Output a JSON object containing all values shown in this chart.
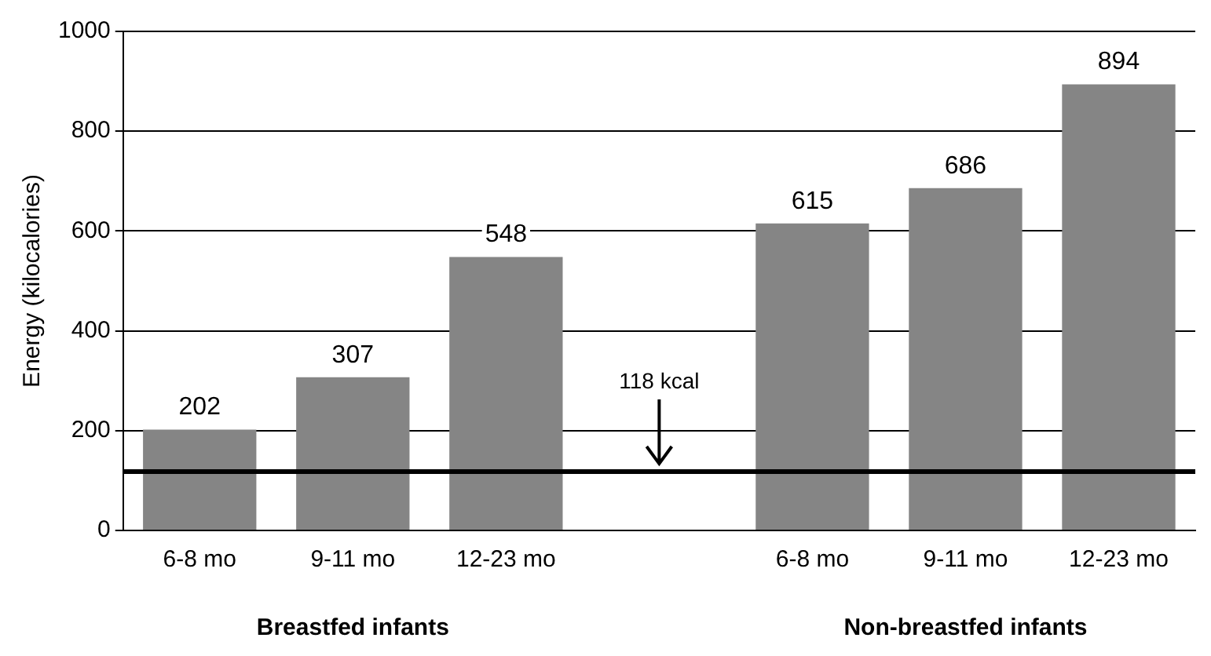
{
  "chart_data": {
    "type": "bar",
    "ylabel": "Energy (kilocalories)",
    "categories": [
      "6-8 mo",
      "9-11 mo",
      "12-23 mo",
      null,
      "6-8 mo",
      "9-11 mo",
      "12-23 mo"
    ],
    "values": [
      202,
      307,
      548,
      null,
      615,
      686,
      894
    ],
    "color": "#858585",
    "ylim": [
      0,
      1000
    ],
    "yticks": [
      0,
      200,
      400,
      600,
      800,
      1000
    ],
    "grid": "y",
    "data_labels": true,
    "ref_lines": [
      {
        "axis": "y",
        "value": 118,
        "label": "118 kcal",
        "color": "#000000"
      }
    ],
    "annotations": [
      "Breastfed infants",
      "Non-breastfed infants"
    ]
  }
}
